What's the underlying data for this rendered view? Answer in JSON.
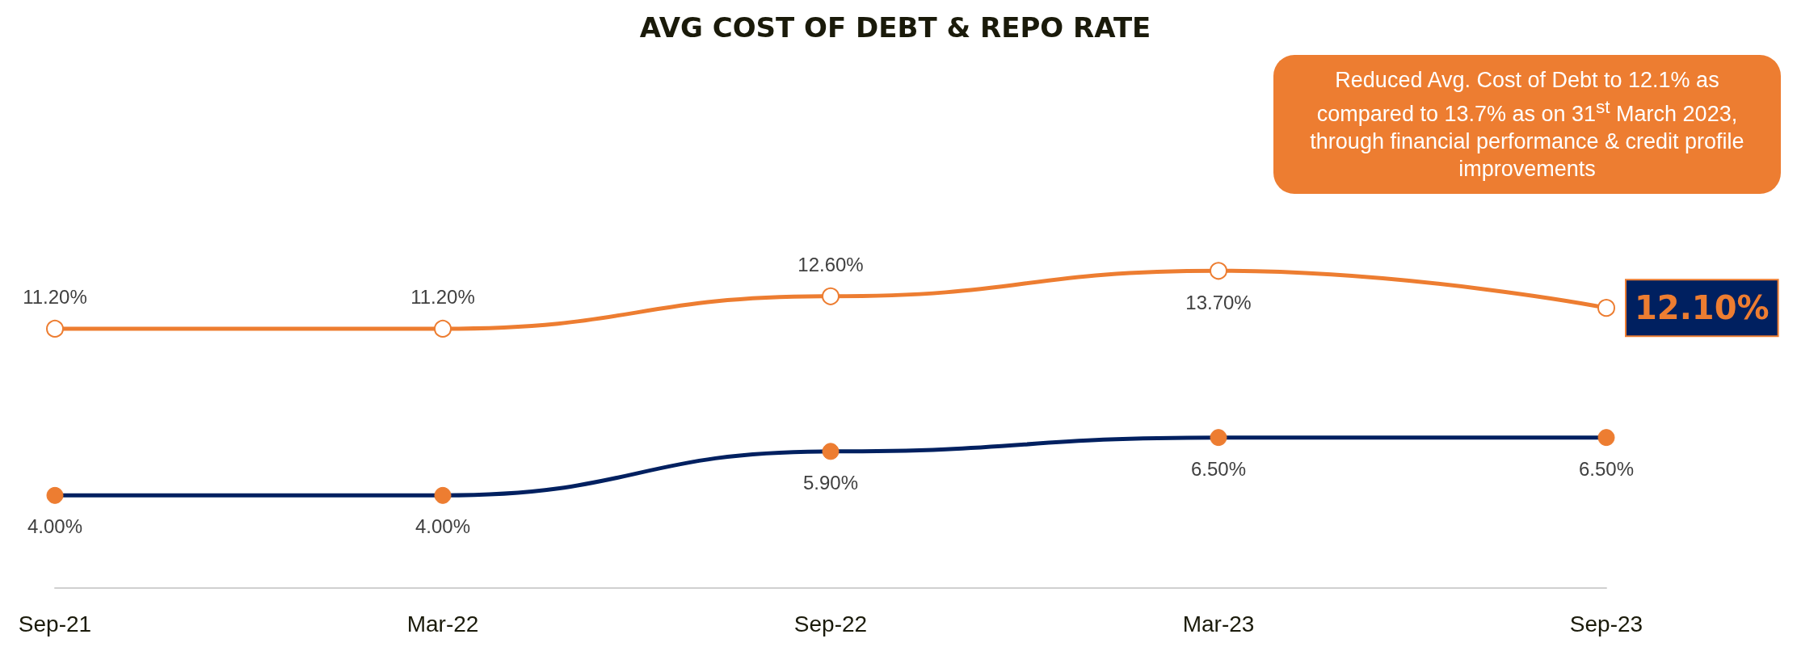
{
  "chart_data": {
    "type": "line",
    "title": "AVG COST OF DEBT & REPO RATE",
    "categories": [
      "Sep-21",
      "Mar-22",
      "Sep-22",
      "Mar-23",
      "Sep-23"
    ],
    "series": [
      {
        "color": "#ed7d31",
        "values": [
          11.2,
          11.2,
          12.6,
          13.7,
          12.1
        ],
        "value_labels": [
          "11.20%",
          "11.20%",
          "12.60%",
          "13.70%",
          "12.10%"
        ]
      },
      {
        "color": "#002060",
        "values": [
          4,
          4,
          5.9,
          6.5,
          6.5
        ],
        "value_labels": [
          "4.00%",
          "4.00%",
          "5.90%",
          "6.50%",
          "6.50%"
        ]
      }
    ],
    "marker": "circle",
    "line_style": "solid",
    "annotations": [
      "Reduced Avg. Cost of Debt to 12.1% as compared to 13.7% as on 31$^{st}$ March 2023, through financial performance & credit profile improvements"
    ]
  }
}
